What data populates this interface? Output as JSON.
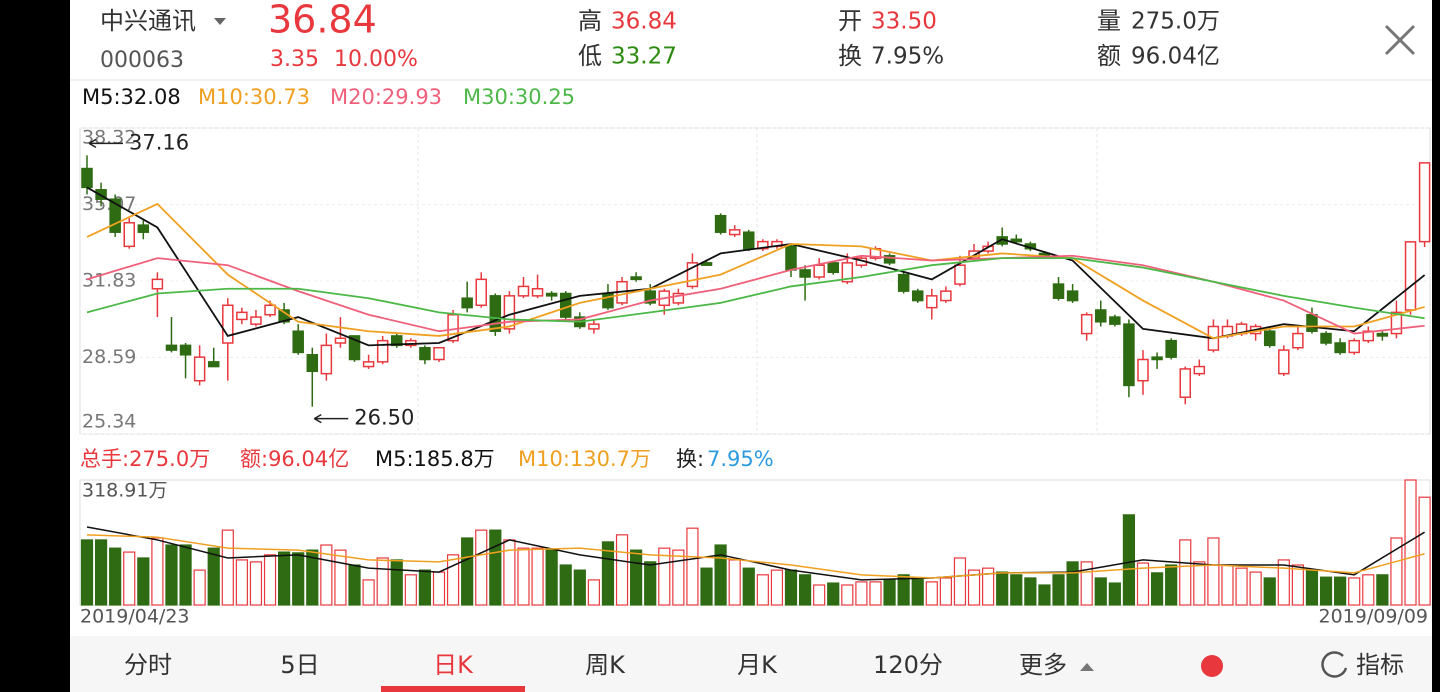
{
  "header": {
    "name": "中兴通讯",
    "code": "000063",
    "price": "36.84",
    "change": "3.35",
    "change_pct": "10.00%",
    "high_label": "高",
    "high": "36.84",
    "low_label": "低",
    "low": "33.27",
    "open_label": "开",
    "open": "33.50",
    "turnover_label": "换",
    "turnover": "7.95%",
    "volume_label": "量",
    "volume": "275.0万",
    "amount_label": "额",
    "amount": "96.04亿"
  },
  "tabs": [
    "分时",
    "5日",
    "日K",
    "周K",
    "月K",
    "120分",
    "更多"
  ],
  "indicator": "指标",
  "chart_data": [
    {
      "type": "candlestick",
      "up_color": "#e8383d",
      "down_color": "#2e6b12",
      "ylim": [
        25.34,
        38.32
      ],
      "yticks": [
        38.32,
        35.07,
        31.83,
        28.59,
        25.34
      ],
      "max_label": {
        "value": 37.16,
        "label": "37.16"
      },
      "min_label": {
        "value": 26.5,
        "label": "26.50"
      },
      "candles": [
        [
          36.6,
          37.16,
          35.5,
          35.8
        ],
        [
          35.7,
          36.0,
          35.0,
          35.3
        ],
        [
          35.3,
          35.5,
          33.7,
          33.9
        ],
        [
          33.3,
          34.5,
          33.2,
          34.3
        ],
        [
          34.2,
          34.4,
          33.6,
          33.9
        ],
        [
          31.5,
          32.2,
          30.3,
          31.9
        ],
        [
          29.1,
          30.3,
          28.8,
          28.9
        ],
        [
          29.1,
          29.2,
          27.7,
          28.7
        ],
        [
          27.6,
          29.1,
          27.4,
          28.6
        ],
        [
          28.4,
          29.0,
          28.2,
          28.2
        ],
        [
          29.2,
          31.1,
          27.6,
          30.8
        ],
        [
          30.2,
          30.7,
          30.0,
          30.5
        ],
        [
          30.0,
          30.6,
          29.9,
          30.3
        ],
        [
          30.4,
          31.0,
          30.3,
          30.8
        ],
        [
          30.6,
          30.9,
          30.0,
          30.1
        ],
        [
          29.7,
          30.0,
          28.7,
          28.8
        ],
        [
          28.7,
          29.0,
          26.5,
          28.0
        ],
        [
          27.9,
          29.6,
          27.6,
          29.1
        ],
        [
          29.2,
          30.3,
          29.0,
          29.4
        ],
        [
          29.5,
          29.5,
          28.4,
          28.5
        ],
        [
          28.2,
          28.7,
          28.1,
          28.4
        ],
        [
          28.4,
          29.5,
          28.3,
          29.3
        ],
        [
          29.5,
          29.6,
          29.0,
          29.1
        ],
        [
          29.1,
          29.4,
          29.0,
          29.3
        ],
        [
          29.0,
          29.1,
          28.3,
          28.5
        ],
        [
          28.5,
          29.0,
          28.4,
          29.0
        ],
        [
          29.3,
          30.6,
          29.2,
          30.4
        ],
        [
          31.1,
          31.8,
          30.5,
          30.7
        ],
        [
          30.8,
          32.2,
          30.7,
          31.9
        ],
        [
          31.2,
          31.3,
          29.5,
          29.7
        ],
        [
          29.8,
          31.4,
          29.6,
          31.2
        ],
        [
          31.2,
          32.0,
          31.1,
          31.6
        ],
        [
          31.2,
          32.1,
          31.1,
          31.5
        ],
        [
          31.3,
          31.4,
          31.0,
          31.2
        ],
        [
          31.3,
          31.4,
          30.2,
          30.3
        ],
        [
          30.3,
          30.5,
          29.8,
          29.9
        ],
        [
          29.8,
          30.2,
          29.6,
          30.0
        ],
        [
          31.3,
          31.7,
          30.6,
          30.7
        ],
        [
          30.9,
          32.0,
          30.8,
          31.8
        ],
        [
          32.0,
          32.2,
          31.8,
          31.9
        ],
        [
          31.4,
          31.7,
          30.8,
          30.9
        ],
        [
          30.8,
          31.5,
          30.4,
          31.4
        ],
        [
          30.9,
          31.5,
          30.8,
          31.3
        ],
        [
          31.6,
          33.0,
          31.5,
          32.6
        ],
        [
          32.6,
          32.7,
          32.5,
          32.5
        ],
        [
          34.6,
          34.7,
          33.8,
          33.9
        ],
        [
          33.8,
          34.2,
          33.7,
          34.0
        ],
        [
          33.9,
          34.0,
          33.1,
          33.2
        ],
        [
          33.2,
          33.6,
          33.1,
          33.5
        ],
        [
          33.3,
          33.6,
          33.2,
          33.5
        ],
        [
          33.3,
          33.4,
          32.0,
          32.3
        ],
        [
          32.3,
          32.5,
          31.0,
          32.0
        ],
        [
          32.0,
          32.8,
          31.9,
          32.5
        ],
        [
          32.6,
          32.7,
          32.1,
          32.2
        ],
        [
          31.8,
          33.0,
          31.7,
          32.6
        ],
        [
          32.5,
          32.9,
          32.4,
          32.8
        ],
        [
          32.8,
          33.3,
          32.7,
          33.2
        ],
        [
          32.9,
          33.0,
          32.5,
          32.6
        ],
        [
          32.1,
          32.2,
          31.3,
          31.4
        ],
        [
          31.4,
          31.5,
          30.9,
          31.0
        ],
        [
          30.7,
          31.5,
          30.2,
          31.2
        ],
        [
          31.0,
          31.6,
          30.9,
          31.4
        ],
        [
          31.7,
          32.9,
          31.6,
          32.5
        ],
        [
          32.8,
          33.4,
          32.7,
          33.1
        ],
        [
          33.1,
          33.5,
          33.0,
          33.3
        ],
        [
          33.7,
          34.1,
          33.3,
          33.4
        ],
        [
          33.6,
          33.8,
          33.4,
          33.5
        ],
        [
          33.4,
          33.5,
          33.1,
          33.2
        ],
        [
          33.0,
          33.1,
          32.8,
          32.9
        ],
        [
          31.7,
          32.0,
          31.0,
          31.1
        ],
        [
          31.4,
          31.7,
          30.9,
          31.0
        ],
        [
          29.6,
          30.5,
          29.3,
          30.4
        ],
        [
          30.6,
          31.0,
          29.9,
          30.1
        ],
        [
          30.3,
          30.4,
          29.9,
          30.0
        ],
        [
          30.0,
          30.2,
          26.9,
          27.4
        ],
        [
          27.6,
          28.9,
          27.0,
          28.5
        ],
        [
          28.6,
          28.8,
          28.1,
          28.5
        ],
        [
          29.3,
          29.4,
          28.5,
          28.6
        ],
        [
          26.9,
          28.2,
          26.6,
          28.1
        ],
        [
          27.9,
          28.5,
          27.8,
          28.2
        ],
        [
          28.9,
          30.2,
          28.8,
          29.9
        ],
        [
          29.5,
          30.2,
          29.4,
          29.9
        ],
        [
          29.6,
          30.1,
          29.5,
          30.0
        ],
        [
          29.6,
          30.0,
          29.3,
          29.9
        ],
        [
          29.7,
          29.9,
          29.0,
          29.1
        ],
        [
          27.9,
          29.1,
          27.8,
          28.9
        ],
        [
          29.0,
          29.9,
          28.9,
          29.6
        ],
        [
          30.4,
          30.7,
          29.6,
          29.7
        ],
        [
          29.6,
          29.7,
          29.1,
          29.2
        ],
        [
          29.2,
          29.4,
          28.7,
          28.8
        ],
        [
          28.8,
          29.4,
          28.7,
          29.3
        ],
        [
          29.3,
          29.9,
          29.2,
          29.7
        ],
        [
          29.6,
          29.7,
          29.3,
          29.5
        ],
        [
          29.6,
          31.0,
          29.4,
          30.5
        ],
        [
          30.6,
          33.49,
          30.4,
          33.49
        ],
        [
          33.5,
          36.84,
          33.27,
          36.84
        ]
      ],
      "ma_x": [
        0,
        5,
        10,
        15,
        20,
        25,
        30,
        35,
        40,
        45,
        50,
        55,
        60,
        65,
        70,
        75,
        80,
        85,
        90,
        95
      ],
      "series": [
        {
          "name": "M5:32.08",
          "color": "#111111",
          "values": [
            35.8,
            34.1,
            29.5,
            30.3,
            29.1,
            29.2,
            30.4,
            31.2,
            31.5,
            33.0,
            33.4,
            32.7,
            31.9,
            33.6,
            32.7,
            29.8,
            29.4,
            30.0,
            29.7,
            32.08
          ]
        },
        {
          "name": "M10:30.73",
          "color": "#f0a020",
          "values": [
            33.7,
            35.1,
            32.1,
            30.1,
            29.7,
            29.5,
            29.9,
            30.9,
            31.5,
            32.1,
            33.4,
            33.3,
            32.7,
            33.0,
            32.8,
            31.0,
            29.4,
            29.9,
            29.9,
            30.73
          ]
        },
        {
          "name": "M20:29.93",
          "color": "#f0607a",
          "values": [
            31.9,
            32.8,
            32.5,
            31.4,
            30.4,
            29.7,
            30.1,
            30.2,
            31.0,
            31.5,
            32.3,
            32.9,
            32.7,
            32.8,
            32.9,
            32.5,
            31.8,
            31.0,
            29.6,
            29.93
          ]
        },
        {
          "name": "M30:30.25",
          "color": "#4cb848",
          "values": [
            30.5,
            31.3,
            31.5,
            31.5,
            31.1,
            30.5,
            30.2,
            30.1,
            30.5,
            30.9,
            31.6,
            32.0,
            32.5,
            32.8,
            32.8,
            32.4,
            31.8,
            31.2,
            30.7,
            30.25
          ]
        }
      ]
    },
    {
      "type": "bar",
      "ylim": [
        0,
        318.91
      ],
      "yticks": [
        {
          "value": 318.91,
          "label": "318.91万"
        }
      ],
      "x_labels": [
        "2019/04/23",
        "2019/09/09"
      ],
      "values": [
        166,
        166,
        145,
        135,
        120,
        171,
        153,
        153,
        89,
        145,
        191,
        115,
        110,
        128,
        135,
        133,
        140,
        153,
        140,
        102,
        64,
        120,
        115,
        77,
        89,
        84,
        128,
        171,
        191,
        191,
        166,
        145,
        145,
        140,
        102,
        89,
        64,
        161,
        179,
        140,
        110,
        145,
        140,
        196,
        94,
        153,
        115,
        94,
        77,
        89,
        89,
        77,
        51,
        56,
        51,
        59,
        59,
        64,
        77,
        69,
        59,
        69,
        120,
        89,
        94,
        84,
        77,
        69,
        51,
        77,
        110,
        110,
        69,
        56,
        230,
        107,
        82,
        102,
        166,
        110,
        171,
        102,
        94,
        84,
        69,
        115,
        102,
        89,
        71,
        71,
        69,
        77,
        77,
        171,
        318.91,
        275
      ],
      "stats": [
        {
          "text": "总手:275.0万",
          "color": "#e8383d"
        },
        {
          "text": "额:96.04亿",
          "color": "#e8383d"
        }
      ],
      "turnover": {
        "label": "换:",
        "value": "7.95%",
        "color": "#2d9be0"
      },
      "ma_x": [
        0,
        5,
        10,
        15,
        20,
        25,
        30,
        35,
        40,
        45,
        50,
        55,
        60,
        65,
        70,
        75,
        80,
        85,
        90,
        95
      ],
      "series": [
        {
          "name": "M5:185.8万",
          "color": "#111111",
          "values": [
            199,
            166,
            120,
            128,
            94,
            84,
            166,
            128,
            102,
            128,
            89,
            64,
            69,
            82,
            84,
            115,
            102,
            102,
            77,
            185.8
          ]
        },
        {
          "name": "M10:130.7万",
          "color": "#f0a020",
          "values": [
            179,
            173,
            145,
            140,
            115,
            110,
            140,
            145,
            128,
            120,
            102,
            77,
            69,
            82,
            82,
            94,
            102,
            94,
            82,
            130.7
          ]
        }
      ]
    }
  ]
}
